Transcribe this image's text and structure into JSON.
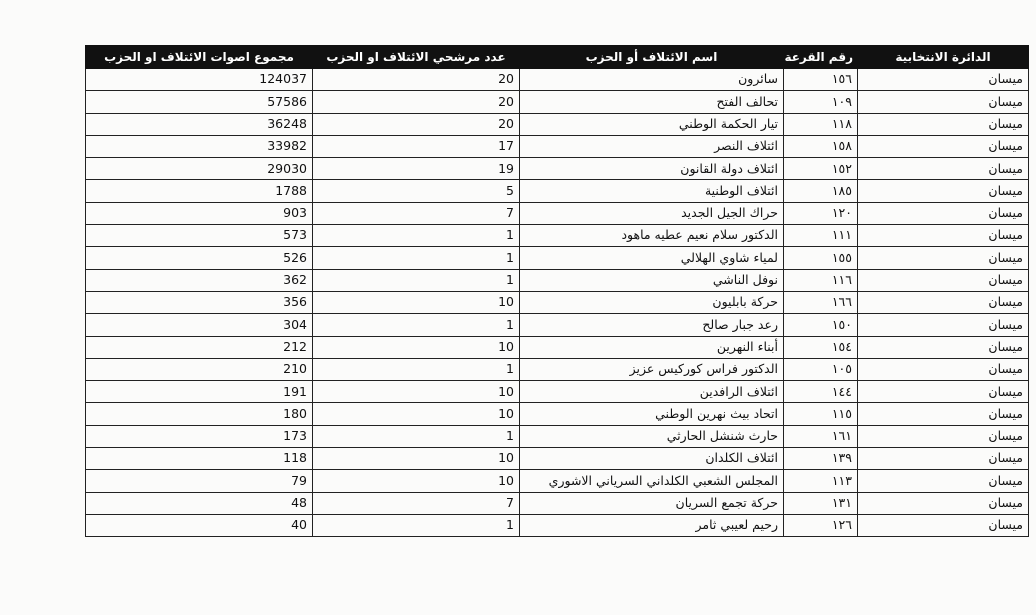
{
  "table": {
    "headers": [
      "الدائرة الانتخابية",
      "رقم القرعة",
      "اسم الائتلاف أو الحزب",
      "عدد مرشحي الائتلاف او الحزب",
      "مجموع اصوات الائتلاف او الحزب"
    ],
    "rows": [
      [
        "ميسان",
        "١٥٦",
        "سائرون",
        20,
        124037
      ],
      [
        "ميسان",
        "١٠٩",
        "تحالف الفتح",
        20,
        57586
      ],
      [
        "ميسان",
        "١١٨",
        "تيار الحكمة الوطني",
        20,
        36248
      ],
      [
        "ميسان",
        "١٥٨",
        "ائتلاف النصر",
        17,
        33982
      ],
      [
        "ميسان",
        "١٥٢",
        "ائتلاف دولة القانون",
        19,
        29030
      ],
      [
        "ميسان",
        "١٨٥",
        "ائتلاف الوطنية",
        5,
        1788
      ],
      [
        "ميسان",
        "١٢٠",
        "حراك الجيل الجديد",
        7,
        903
      ],
      [
        "ميسان",
        "١١١",
        "الدكتور سلام نعيم عطيه ماهود",
        1,
        573
      ],
      [
        "ميسان",
        "١٥٥",
        "لمياء شاوي الهلالي",
        1,
        526
      ],
      [
        "ميسان",
        "١١٦",
        "نوفل الناشي",
        1,
        362
      ],
      [
        "ميسان",
        "١٦٦",
        "حركة بابليون",
        10,
        356
      ],
      [
        "ميسان",
        "١٥٠",
        "رعد جبار صالح",
        1,
        304
      ],
      [
        "ميسان",
        "١٥٤",
        "أبناء النهرين",
        10,
        212
      ],
      [
        "ميسان",
        "١٠٥",
        "الدكتور فراس كوركيس عزيز",
        1,
        210
      ],
      [
        "ميسان",
        "١٤٤",
        "ائتلاف الرافدين",
        10,
        191
      ],
      [
        "ميسان",
        "١١٥",
        "اتحاد بيث نهرين الوطني",
        10,
        180
      ],
      [
        "ميسان",
        "١٦١",
        "حارث شنشل الحارثي",
        1,
        173
      ],
      [
        "ميسان",
        "١٣٩",
        "ائتلاف الكلدان",
        10,
        118
      ],
      [
        "ميسان",
        "١١٣",
        "المجلس الشعبي الكلداني السرياني الاشوري",
        10,
        79
      ],
      [
        "ميسان",
        "١٣١",
        "حركة تجمع السريان",
        7,
        48
      ],
      [
        "ميسان",
        "١٢٦",
        "رحيم لعيبي ثامر",
        1,
        40
      ]
    ]
  }
}
